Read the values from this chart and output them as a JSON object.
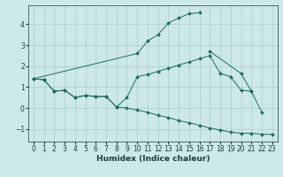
{
  "xlabel": "Humidex (Indice chaleur)",
  "bg_color": "#cce8ea",
  "grid_color": "#aacdd0",
  "line_color": "#1e6b5e",
  "ylim": [
    -1.6,
    4.9
  ],
  "xlim": [
    -0.5,
    23.5
  ],
  "yticks": [
    -1,
    0,
    1,
    2,
    3,
    4
  ],
  "xticks": [
    0,
    1,
    2,
    3,
    4,
    5,
    6,
    7,
    8,
    9,
    10,
    11,
    12,
    13,
    14,
    15,
    16,
    17,
    18,
    19,
    20,
    21,
    22,
    23
  ],
  "line1_x": [
    0,
    1,
    2,
    3,
    4,
    5,
    6,
    7,
    8,
    9,
    10,
    11,
    12,
    13,
    14,
    15,
    16,
    17,
    18,
    19,
    20,
    21
  ],
  "line1_y": [
    1.4,
    1.35,
    0.8,
    0.85,
    0.5,
    0.6,
    0.55,
    0.55,
    0.05,
    0.5,
    1.5,
    1.6,
    1.75,
    1.9,
    2.05,
    2.2,
    2.35,
    2.5,
    1.65,
    1.5,
    0.85,
    0.8
  ],
  "line2_x": [
    0,
    10,
    11,
    12,
    13,
    14,
    15,
    16,
    17,
    20,
    21,
    22
  ],
  "line2_y": [
    1.4,
    2.6,
    3.2,
    3.5,
    4.05,
    4.3,
    4.5,
    4.55,
    2.7,
    1.65,
    0.8,
    -0.2
  ],
  "line3_x": [
    0,
    1,
    2,
    3,
    4,
    5,
    6,
    7,
    8,
    9,
    10,
    11,
    12,
    13,
    14,
    15,
    16,
    17,
    18,
    19,
    20,
    21,
    22,
    23
  ],
  "line3_y": [
    1.4,
    1.35,
    0.8,
    0.85,
    0.5,
    0.6,
    0.55,
    0.55,
    0.05,
    0.0,
    -0.1,
    -0.2,
    -0.35,
    -0.45,
    -0.6,
    -0.7,
    -0.82,
    -0.95,
    -1.05,
    -1.15,
    -1.2,
    -1.2,
    -1.25,
    -1.25
  ]
}
